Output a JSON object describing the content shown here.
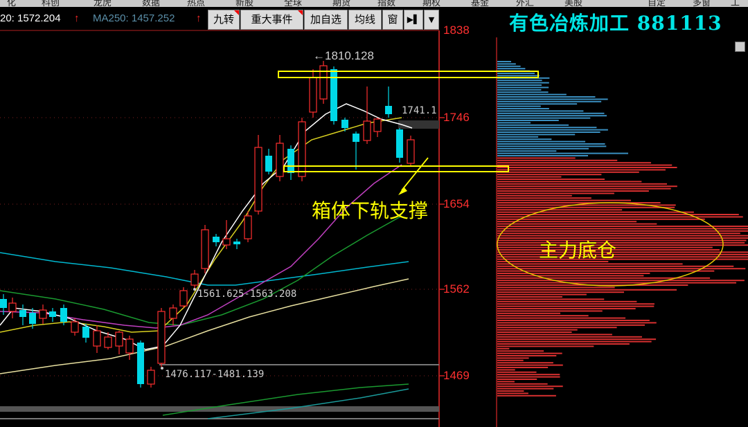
{
  "top_menu": [
    "化",
    "科创",
    "龙虎",
    "数据",
    "热点",
    "新股",
    "全球",
    "期货",
    "指数",
    "期权",
    "基金",
    "外汇",
    "美股",
    "自定",
    "多窗",
    "工具"
  ],
  "ma_bar": {
    "ma20": "20: 1572.204",
    "ma250": "MA250: 1457.252"
  },
  "toolbar": {
    "nine_turn": "九转",
    "major_events": "重大事件",
    "add_watchlist": "加自选",
    "ma_line": "均线",
    "window": "窗",
    "next": "▶▌",
    "dropdown": "▼"
  },
  "sector": {
    "name": "有色冶炼加工",
    "code": "881113"
  },
  "price_axis": [
    "1838",
    "1746",
    "1654",
    "1562",
    "1469"
  ],
  "chart_labels": {
    "high": "←1810.128",
    "current": "1741.1",
    "mid_range": "1561.625-1563.208",
    "low_range": "1476.117-1481.139"
  },
  "annotations": {
    "support": "箱体下轨支撑",
    "main_force": "主力底仓"
  },
  "colors": {
    "up": "#ff3030",
    "down": "#00d8e8",
    "annotation": "#ffff00",
    "sector_title": "#00e5e5"
  },
  "chart_data": {
    "type": "candlestick",
    "price_ticks": [
      1838,
      1746,
      1654,
      1562,
      1469
    ],
    "high_label": 1810.128,
    "last_close_label": 1741.1
  }
}
